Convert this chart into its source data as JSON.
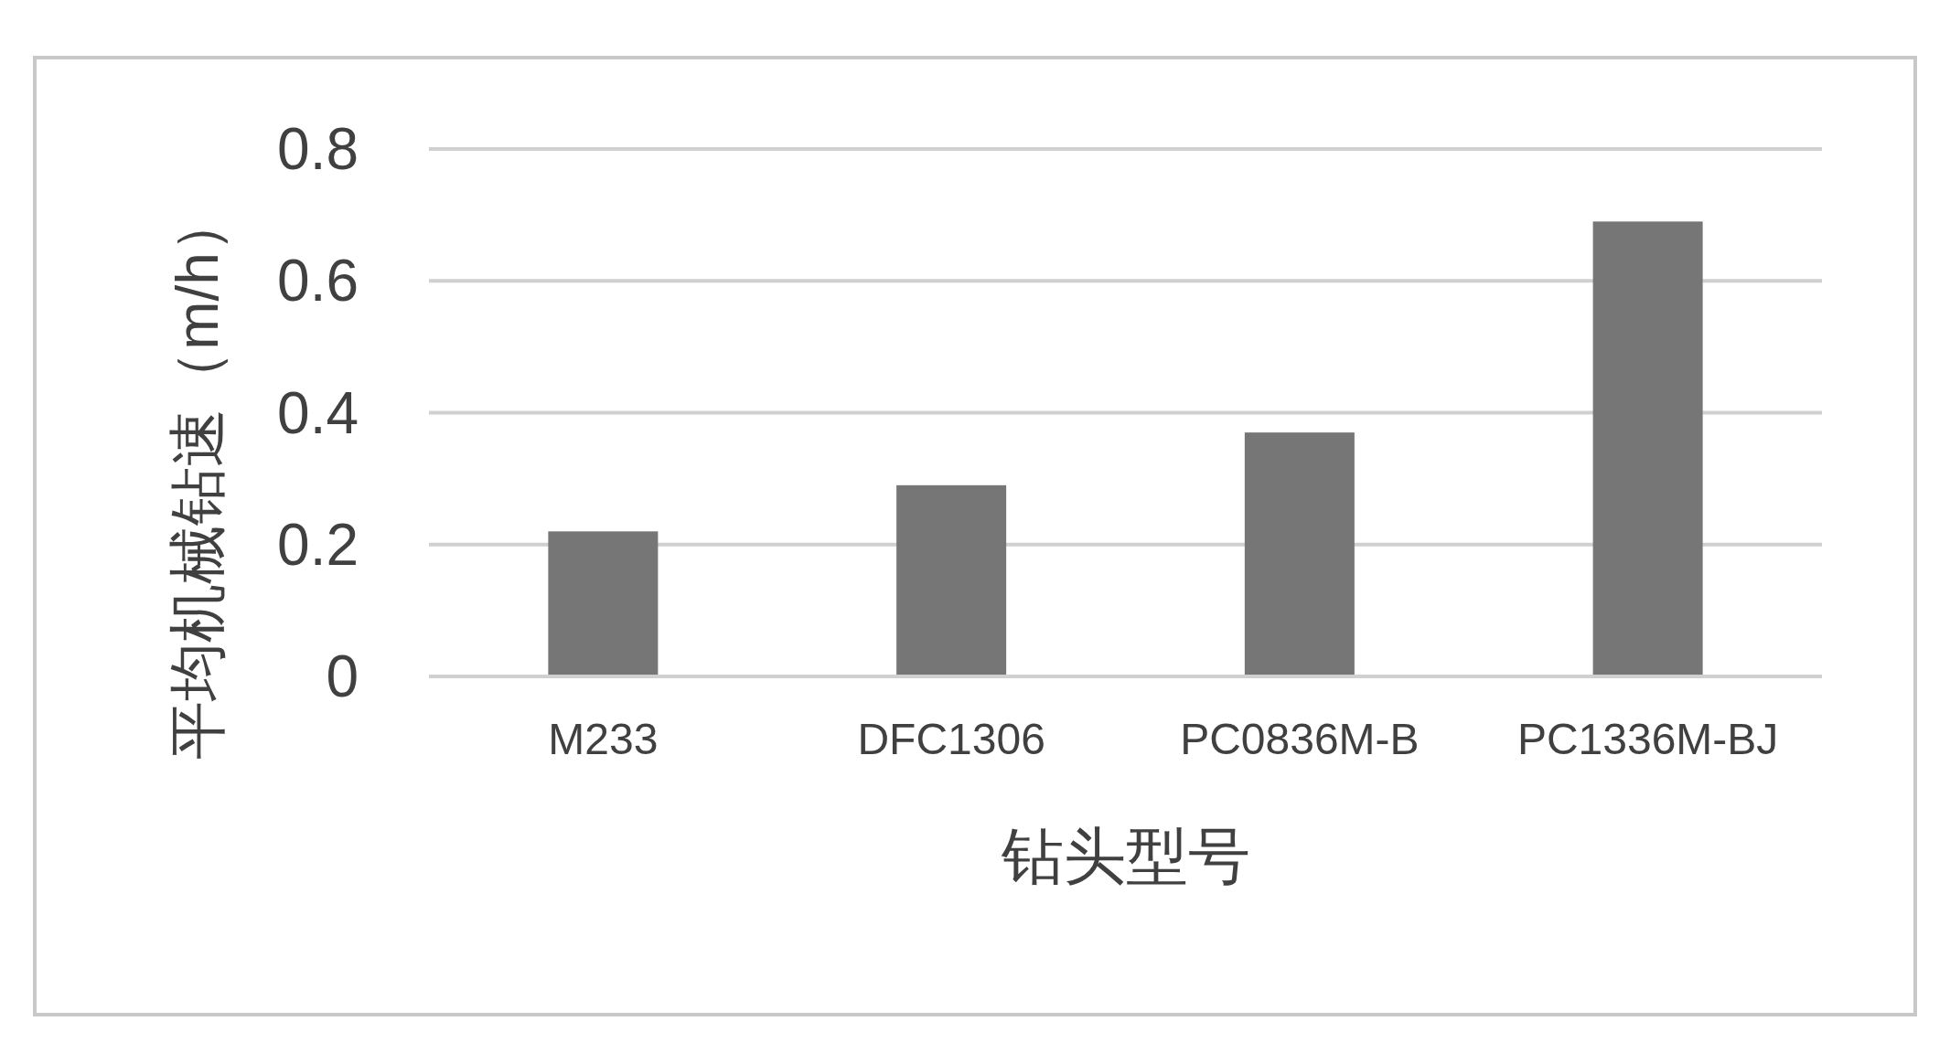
{
  "chart_data": {
    "type": "bar",
    "xlabel": "钻头型号",
    "ylabel": "平均机械钻速（m/h）",
    "categories": [
      "M233",
      "DFC1306",
      "PC0836M-B",
      "PC1336M-BJ"
    ],
    "values": [
      0.22,
      0.29,
      0.37,
      0.69
    ],
    "color": "#767676",
    "ylim": [
      0,
      0.8
    ],
    "yticks": [
      0,
      0.2,
      0.4,
      0.6,
      0.8
    ],
    "grid": "y"
  }
}
